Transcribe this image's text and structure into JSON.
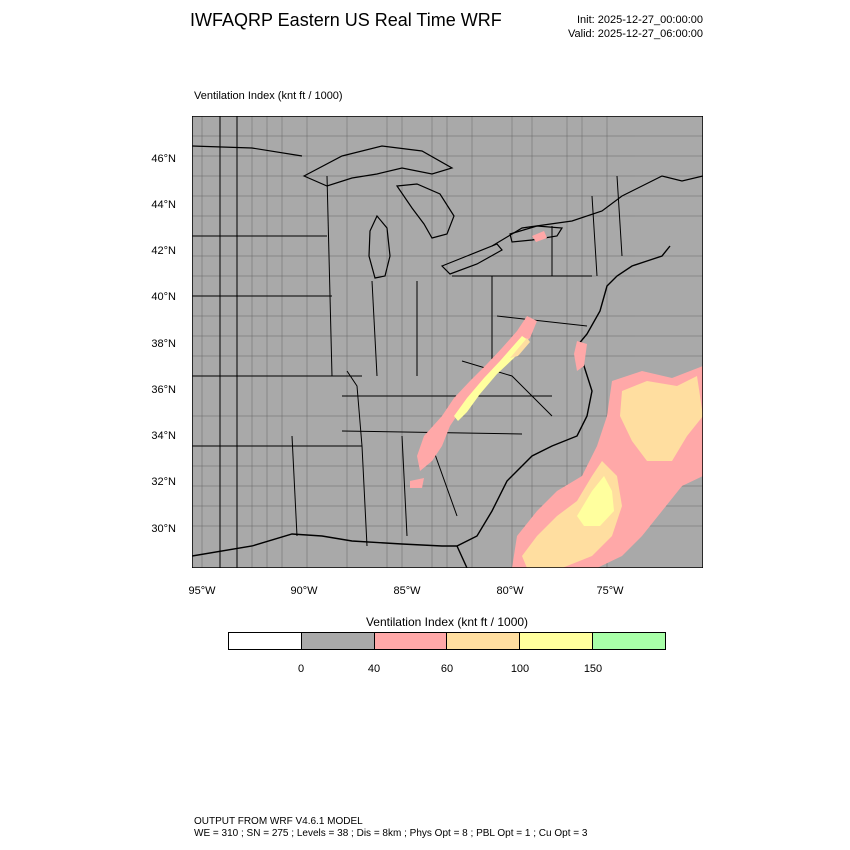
{
  "title": "IWFAQRP Eastern US Real Time WRF",
  "init": "Init: 2025-12-27_00:00:00",
  "valid": "Valid: 2025-12-27_06:00:00",
  "plot_label": "Ventilation Index   (knt ft / 1000)",
  "lat_labels": [
    "46°N",
    "44°N",
    "42°N",
    "40°N",
    "38°N",
    "36°N",
    "34°N",
    "32°N",
    "30°N"
  ],
  "lon_labels": [
    "95°W",
    "90°W",
    "85°W",
    "80°W",
    "75°W"
  ],
  "legend": {
    "title": "Ventilation Index  (knt ft / 1000)",
    "ticks": [
      "0",
      "40",
      "60",
      "100",
      "150"
    ],
    "colors": [
      "#ffffff",
      "#a9a9a9",
      "#ffa8a8",
      "#ffdea0",
      "#ffff9e",
      "#a8ffa8"
    ]
  },
  "model_info": {
    "line1": "OUTPUT FROM WRF V4.6.1 MODEL",
    "line2": "WE = 310 ; SN = 275 ; Levels = 38 ; Dis = 8km ; Phys Opt = 8 ; PBL Opt = 1 ; Cu Opt = 3"
  }
}
